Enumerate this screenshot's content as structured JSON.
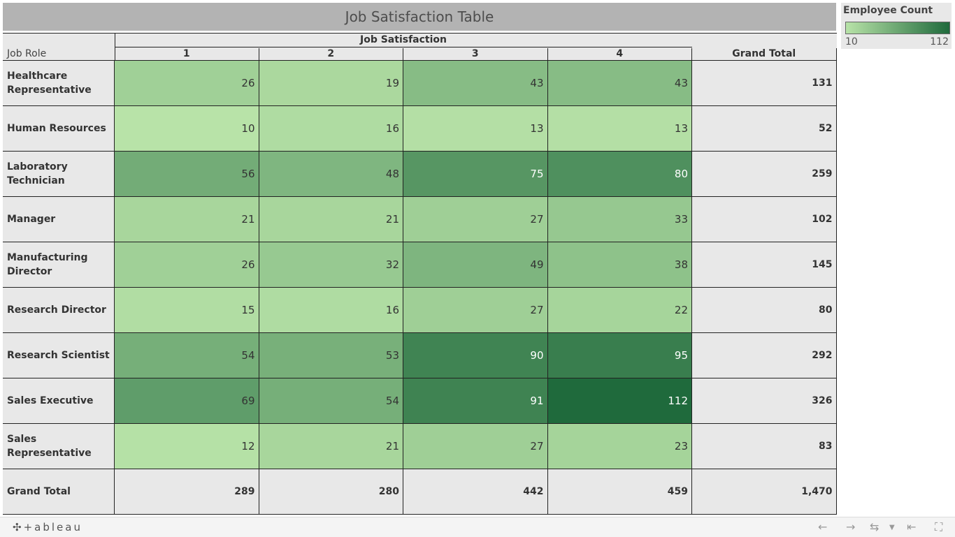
{
  "title": "Job Satisfaction Table",
  "legend": {
    "title": "Employee Count",
    "min": "10",
    "max": "112"
  },
  "chart_data": {
    "type": "heatmap",
    "title": "Job Satisfaction Table",
    "row_dimension": "Job Role",
    "column_dimension": "Job Satisfaction",
    "columns": [
      "1",
      "2",
      "3",
      "4"
    ],
    "total_label": "Grand Total",
    "rows": [
      {
        "label": "Healthcare Representative",
        "values": [
          26,
          19,
          43,
          43
        ],
        "total": "131"
      },
      {
        "label": "Human Resources",
        "values": [
          10,
          16,
          13,
          13
        ],
        "total": "52"
      },
      {
        "label": "Laboratory Technician",
        "values": [
          56,
          48,
          75,
          80
        ],
        "total": "259"
      },
      {
        "label": "Manager",
        "values": [
          21,
          21,
          27,
          33
        ],
        "total": "102"
      },
      {
        "label": "Manufacturing Director",
        "values": [
          26,
          32,
          49,
          38
        ],
        "total": "145"
      },
      {
        "label": "Research Director",
        "values": [
          15,
          16,
          27,
          22
        ],
        "total": "80"
      },
      {
        "label": "Research Scientist",
        "values": [
          54,
          53,
          90,
          95
        ],
        "total": "292"
      },
      {
        "label": "Sales Executive",
        "values": [
          69,
          54,
          91,
          112
        ],
        "total": "326"
      },
      {
        "label": "Sales Representative",
        "values": [
          12,
          21,
          27,
          23
        ],
        "total": "83"
      }
    ],
    "column_totals": [
      "289",
      "280",
      "442",
      "459"
    ],
    "grand_total": "1,470",
    "color_scale": {
      "min": 10,
      "max": 112,
      "low_color": "#b8e3a8",
      "high_color": "#1f6a3c"
    }
  },
  "footer": {
    "logo": "+ableau"
  }
}
